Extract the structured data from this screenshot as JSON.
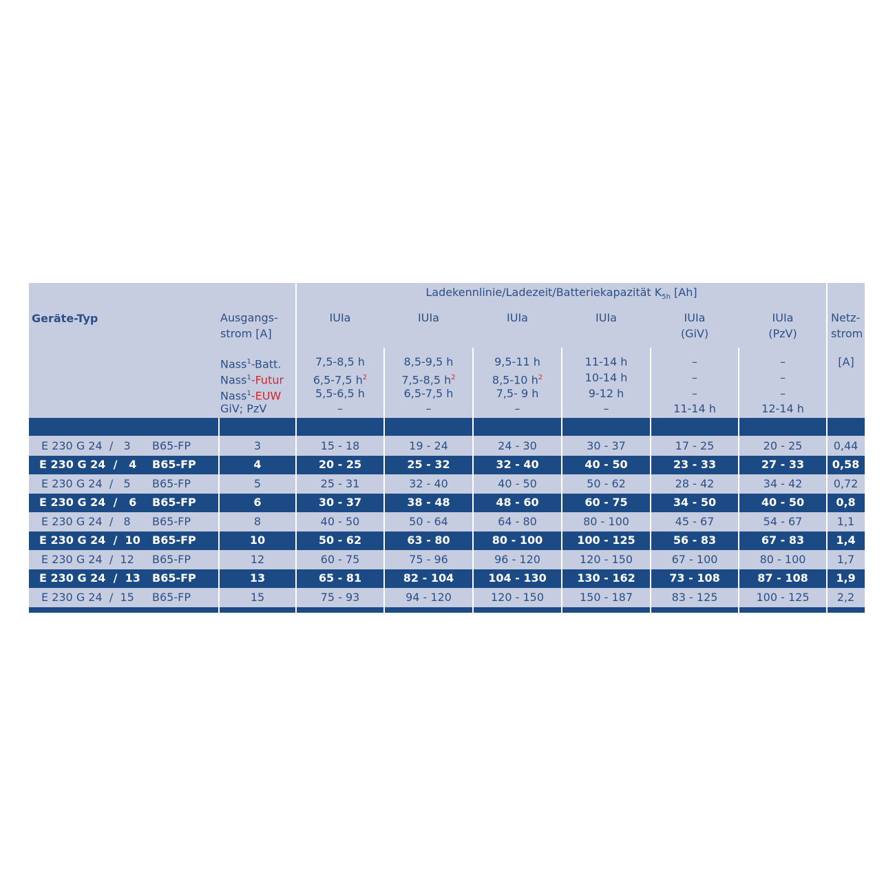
{
  "header": {
    "device_type": "Geräte-Typ",
    "output_current": [
      "Ausgangs-",
      "strom [A]"
    ],
    "group_title": {
      "main": "Ladekennlinie/Ladezeit/Batteriekapazität K",
      "sub": "5h",
      "end": " [Ah]"
    },
    "mains_current": [
      "Netz-",
      "strom",
      "[A]"
    ],
    "battery_types": [
      {
        "prefix": "Nass",
        "sup": "1",
        "suffix": "-Batt."
      },
      {
        "prefix": "Nass",
        "sup": "1",
        "suffix": "-Futur"
      },
      {
        "prefix": "Nass",
        "sup": "1",
        "suffix": "-EUW"
      },
      {
        "prefix": "GiV; PzV"
      }
    ],
    "curves": [
      {
        "label": [
          "IUIa"
        ],
        "times": [
          {
            "text": "7,5-8,5 h"
          },
          {
            "text": "6,5-7,5 h",
            "note": "2"
          },
          {
            "text": "5,5-6,5 h"
          },
          {
            "text": "–"
          }
        ]
      },
      {
        "label": [
          "IUIa"
        ],
        "times": [
          {
            "text": "8,5-9,5 h"
          },
          {
            "text": "7,5-8,5 h",
            "note": "2"
          },
          {
            "text": "6,5-7,5 h"
          },
          {
            "text": "–"
          }
        ]
      },
      {
        "label": [
          "IUIa"
        ],
        "times": [
          {
            "text": "9,5-11 h"
          },
          {
            "text": "8,5-10 h",
            "note": "2"
          },
          {
            "text": "7,5- 9 h"
          },
          {
            "text": "–"
          }
        ]
      },
      {
        "label": [
          "IUIa"
        ],
        "times": [
          {
            "text": "11-14 h"
          },
          {
            "text": "10-14 h"
          },
          {
            "text": "9-12 h"
          },
          {
            "text": "–"
          }
        ]
      },
      {
        "label": [
          "IUIa",
          "(GiV)"
        ],
        "times": [
          {
            "text": "–"
          },
          {
            "text": "–"
          },
          {
            "text": "–"
          },
          {
            "text": "11-14 h"
          }
        ]
      },
      {
        "label": [
          "IUIa",
          "(PzV)"
        ],
        "times": [
          {
            "text": "–"
          },
          {
            "text": "–"
          },
          {
            "text": "–"
          },
          {
            "text": "12-14 h"
          }
        ]
      }
    ]
  },
  "table": {
    "rows": [
      [
        "E 230 G 24  /   3",
        "B65-FP",
        "3",
        "15 - 18",
        "19 - 24",
        "24 - 30",
        "30 - 37",
        "17 - 25",
        "20 - 25",
        "0,44"
      ],
      [
        "E 230 G 24  /   4",
        "B65-FP",
        "4",
        "20 - 25",
        "25 - 32",
        "32 - 40",
        "40 - 50",
        "23 - 33",
        "27 - 33",
        "0,58"
      ],
      [
        "E 230 G 24  /   5",
        "B65-FP",
        "5",
        "25 - 31",
        "32 - 40",
        "40 - 50",
        "50 - 62",
        "28 - 42",
        "34 - 42",
        "0,72"
      ],
      [
        "E 230 G 24  /   6",
        "B65-FP",
        "6",
        "30 - 37",
        "38 - 48",
        "48 - 60",
        "60 - 75",
        "34 - 50",
        "40 - 50",
        "0,8"
      ],
      [
        "E 230 G 24  /   8",
        "B65-FP",
        "8",
        "40 - 50",
        "50 - 64",
        "64 - 80",
        "80 - 100",
        "45 - 67",
        "54 - 67",
        "1,1"
      ],
      [
        "E 230 G 24  /  10",
        "B65-FP",
        "10",
        "50 - 62",
        "63 - 80",
        "80 - 100",
        "100 - 125",
        "56 - 83",
        "67 - 83",
        "1,4"
      ],
      [
        "E 230 G 24  /  12",
        "B65-FP",
        "12",
        "60 - 75",
        "75 - 96",
        "96 - 120",
        "120 - 150",
        "67 - 100",
        "80 - 100",
        "1,7"
      ],
      [
        "E 230 G 24  /  13",
        "B65-FP",
        "13",
        "65 - 81",
        "82 - 104",
        "104 - 130",
        "130 - 162",
        "73 - 108",
        "87 - 108",
        "1,9"
      ],
      [
        "E 230 G 24  /  15",
        "B65-FP",
        "15",
        "75 - 93",
        "94 - 120",
        "120 - 150",
        "150 - 187",
        "83 - 125",
        "100 - 125",
        "2,2"
      ]
    ]
  }
}
